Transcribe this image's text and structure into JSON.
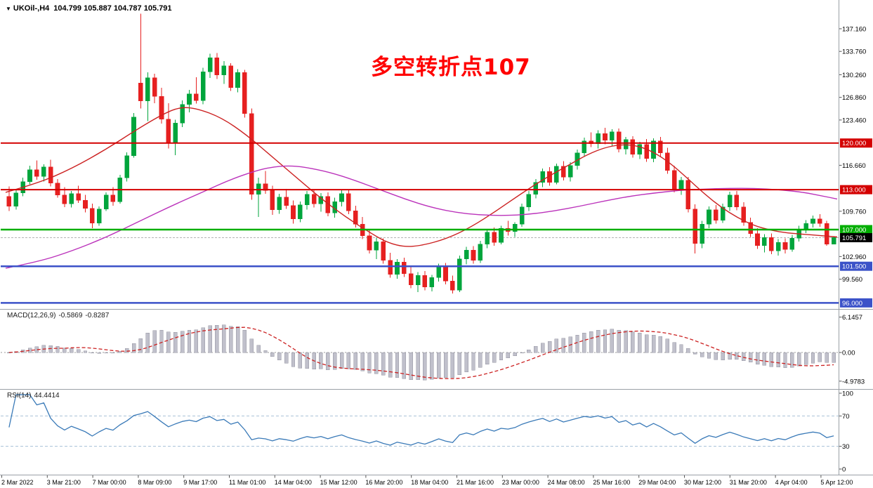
{
  "window": {
    "collapse_icon": "▼",
    "symbol": "UKOil-,H4",
    "ohlc_line": "104.799 105.887 104.787 105.791"
  },
  "annotation": {
    "text": "多空转折点107",
    "color": "#ff0000"
  },
  "indicators": {
    "macd": {
      "label": "MACD(12,26,9)",
      "main_value": "-0.5869",
      "signal_value": "-0.8287",
      "fast": 12,
      "slow": 26,
      "signal": 9,
      "histogram_color": "#c0c0cb",
      "histogram_stroke": "#9494a2",
      "signal_color": "#cc2222",
      "axis_labels": [
        {
          "label": "6.1457",
          "value": 6.1457
        },
        {
          "label": "0.00",
          "value": 0
        },
        {
          "label": "-4.9783",
          "value": -4.9783
        }
      ]
    },
    "rsi": {
      "label": "RSI(14)",
      "value": "44.4414",
      "period": 14,
      "line_color": "#3a7ab8",
      "level_color": "#a8c0d8",
      "levels": [
        70,
        30
      ],
      "axis_labels": [
        {
          "label": "100",
          "value": 100
        },
        {
          "label": "70",
          "value": 70
        },
        {
          "label": "30",
          "value": 30
        },
        {
          "label": "0",
          "value": 0
        }
      ]
    }
  },
  "chart_data": {
    "type": "candlestick",
    "symbol": "UKOil-",
    "timeframe": "H4",
    "ylim": [
      95.3,
      140.0
    ],
    "grid": false,
    "up_color": "#00a53c",
    "down_color": "#e62020",
    "current_price": {
      "label": "105.791",
      "value": 105.791,
      "box_color": "#000000"
    },
    "price_ticks": [
      {
        "label": "137.160",
        "value": 137.16
      },
      {
        "label": "133.760",
        "value": 133.76
      },
      {
        "label": "130.260",
        "value": 130.26
      },
      {
        "label": "126.860",
        "value": 126.86
      },
      {
        "label": "123.460",
        "value": 123.46
      },
      {
        "label": "116.660",
        "value": 116.66
      },
      {
        "label": "109.760",
        "value": 109.76
      },
      {
        "label": "102.960",
        "value": 102.96
      },
      {
        "label": "99.560",
        "value": 99.56
      }
    ],
    "line_levels": [
      {
        "label": "120.000",
        "value": 120.0,
        "color": "#d40000",
        "width": 2
      },
      {
        "label": "113.000",
        "value": 113.0,
        "color": "#d40000",
        "width": 2
      },
      {
        "label": "107.000",
        "value": 107.0,
        "color": "#00ae00",
        "width": 2.5
      },
      {
        "label": "101.500",
        "value": 101.5,
        "color": "#3b52c8",
        "width": 2.5
      },
      {
        "label": "96.000",
        "value": 96.0,
        "color": "#3b52c8",
        "width": 2.5
      }
    ],
    "ma_red": {
      "color": "#cc2222",
      "points": [
        [
          0,
          112.6
        ],
        [
          0.04,
          114.0
        ],
        [
          0.08,
          116.2
        ],
        [
          0.12,
          119.0
        ],
        [
          0.16,
          122.2
        ],
        [
          0.19,
          124.4
        ],
        [
          0.21,
          125.4
        ],
        [
          0.23,
          125.2
        ],
        [
          0.26,
          123.8
        ],
        [
          0.29,
          121.2
        ],
        [
          0.32,
          118.0
        ],
        [
          0.35,
          114.8
        ],
        [
          0.38,
          111.6
        ],
        [
          0.41,
          108.8
        ],
        [
          0.44,
          106.4
        ],
        [
          0.46,
          105.0
        ],
        [
          0.48,
          104.4
        ],
        [
          0.5,
          104.6
        ],
        [
          0.53,
          105.6
        ],
        [
          0.56,
          107.4
        ],
        [
          0.59,
          109.8
        ],
        [
          0.62,
          112.4
        ],
        [
          0.65,
          114.8
        ],
        [
          0.68,
          116.9
        ],
        [
          0.7,
          118.3
        ],
        [
          0.72,
          119.3
        ],
        [
          0.74,
          119.8
        ],
        [
          0.76,
          119.6
        ],
        [
          0.78,
          118.6
        ],
        [
          0.8,
          116.9
        ],
        [
          0.82,
          114.7
        ],
        [
          0.84,
          112.4
        ],
        [
          0.86,
          110.4
        ],
        [
          0.88,
          108.8
        ],
        [
          0.9,
          107.6
        ],
        [
          0.92,
          106.9
        ],
        [
          0.94,
          106.5
        ],
        [
          0.96,
          106.3
        ],
        [
          0.98,
          106.1
        ],
        [
          1.0,
          105.9
        ]
      ]
    },
    "ma_magenta": {
      "color": "#bb33bb",
      "points": [
        [
          0,
          101.2
        ],
        [
          0.04,
          102.2
        ],
        [
          0.08,
          103.8
        ],
        [
          0.12,
          105.8
        ],
        [
          0.16,
          108.2
        ],
        [
          0.2,
          110.6
        ],
        [
          0.24,
          112.8
        ],
        [
          0.27,
          114.5
        ],
        [
          0.3,
          115.8
        ],
        [
          0.32,
          116.4
        ],
        [
          0.34,
          116.6
        ],
        [
          0.36,
          116.4
        ],
        [
          0.39,
          115.6
        ],
        [
          0.42,
          114.4
        ],
        [
          0.45,
          113.0
        ],
        [
          0.48,
          111.6
        ],
        [
          0.51,
          110.4
        ],
        [
          0.54,
          109.6
        ],
        [
          0.57,
          109.2
        ],
        [
          0.6,
          109.1
        ],
        [
          0.63,
          109.3
        ],
        [
          0.66,
          109.8
        ],
        [
          0.69,
          110.5
        ],
        [
          0.72,
          111.3
        ],
        [
          0.75,
          112.0
        ],
        [
          0.78,
          112.5
        ],
        [
          0.81,
          112.9
        ],
        [
          0.84,
          113.1
        ],
        [
          0.87,
          113.2
        ],
        [
          0.9,
          113.2
        ],
        [
          0.93,
          113.0
        ],
        [
          0.96,
          112.6
        ],
        [
          0.98,
          112.1
        ],
        [
          1.0,
          111.6
        ]
      ]
    },
    "candles": [
      [
        112.0,
        113.5,
        109.8,
        110.5
      ],
      [
        110.5,
        113.0,
        110.0,
        112.5
      ],
      [
        112.5,
        114.8,
        112.0,
        114.2
      ],
      [
        114.2,
        116.6,
        113.8,
        116.0
      ],
      [
        116.0,
        117.4,
        114.5,
        115.0
      ],
      [
        115.0,
        116.8,
        114.2,
        116.4
      ],
      [
        116.4,
        117.5,
        113.5,
        114.0
      ],
      [
        114.0,
        114.6,
        111.8,
        112.2
      ],
      [
        112.2,
        113.4,
        110.4,
        110.9
      ],
      [
        110.9,
        112.8,
        110.3,
        112.4
      ],
      [
        112.4,
        113.6,
        111.0,
        111.4
      ],
      [
        111.4,
        112.2,
        109.6,
        110.2
      ],
      [
        110.2,
        110.9,
        107.2,
        108.0
      ],
      [
        108.0,
        110.5,
        107.6,
        110.1
      ],
      [
        110.1,
        112.6,
        109.8,
        112.2
      ],
      [
        112.2,
        113.4,
        110.6,
        111.2
      ],
      [
        111.2,
        115.2,
        110.9,
        114.8
      ],
      [
        114.8,
        118.6,
        114.2,
        118.1
      ],
      [
        118.1,
        124.5,
        117.8,
        123.9
      ],
      [
        129.0,
        139.4,
        125.2,
        126.3
      ],
      [
        126.3,
        130.6,
        123.3,
        129.8
      ],
      [
        129.8,
        130.4,
        126.0,
        127.0
      ],
      [
        127.0,
        128.3,
        122.9,
        123.6
      ],
      [
        123.6,
        126.0,
        119.2,
        120.0
      ],
      [
        120.0,
        123.5,
        118.2,
        123.0
      ],
      [
        123.0,
        126.4,
        122.4,
        125.8
      ],
      [
        125.8,
        128.0,
        124.6,
        127.4
      ],
      [
        127.4,
        129.9,
        125.9,
        126.4
      ],
      [
        126.4,
        131.3,
        125.8,
        130.7
      ],
      [
        130.7,
        133.4,
        129.8,
        132.8
      ],
      [
        132.8,
        133.5,
        129.6,
        130.2
      ],
      [
        130.2,
        132.3,
        128.9,
        131.6
      ],
      [
        131.6,
        132.0,
        127.8,
        128.3
      ],
      [
        128.3,
        131.1,
        127.6,
        130.6
      ],
      [
        130.6,
        131.0,
        123.8,
        124.4
      ],
      [
        124.4,
        125.2,
        111.5,
        112.3
      ],
      [
        112.3,
        114.8,
        108.9,
        113.9
      ],
      [
        113.9,
        115.8,
        112.4,
        112.9
      ],
      [
        112.9,
        113.6,
        109.2,
        110.0
      ],
      [
        110.0,
        112.4,
        109.4,
        111.9
      ],
      [
        111.9,
        113.1,
        110.1,
        110.6
      ],
      [
        110.6,
        111.4,
        107.9,
        108.6
      ],
      [
        108.6,
        111.2,
        108.1,
        110.7
      ],
      [
        110.7,
        112.8,
        110.0,
        112.3
      ],
      [
        112.3,
        113.0,
        110.3,
        110.9
      ],
      [
        110.9,
        112.5,
        109.7,
        112.0
      ],
      [
        112.0,
        112.6,
        109.0,
        109.5
      ],
      [
        109.5,
        111.8,
        108.8,
        111.2
      ],
      [
        111.2,
        112.9,
        110.5,
        112.4
      ],
      [
        112.4,
        112.9,
        109.3,
        109.8
      ],
      [
        109.8,
        110.6,
        107.3,
        107.8
      ],
      [
        107.8,
        108.9,
        105.6,
        106.1
      ],
      [
        106.1,
        107.0,
        103.4,
        103.9
      ],
      [
        103.9,
        105.8,
        102.6,
        105.2
      ],
      [
        105.2,
        105.7,
        101.9,
        102.4
      ],
      [
        102.4,
        103.5,
        99.8,
        100.3
      ],
      [
        100.3,
        102.6,
        99.6,
        102.1
      ],
      [
        102.1,
        102.8,
        99.9,
        100.4
      ],
      [
        100.4,
        101.5,
        98.2,
        98.7
      ],
      [
        98.7,
        100.6,
        97.6,
        100.1
      ],
      [
        100.1,
        100.8,
        97.9,
        98.4
      ],
      [
        98.4,
        100.2,
        97.7,
        99.8
      ],
      [
        99.8,
        101.9,
        99.2,
        101.4
      ],
      [
        101.4,
        102.0,
        98.8,
        99.3
      ],
      [
        99.3,
        100.1,
        97.4,
        97.9
      ],
      [
        97.9,
        103.1,
        97.6,
        102.6
      ],
      [
        102.6,
        104.4,
        101.8,
        103.9
      ],
      [
        103.9,
        104.5,
        101.9,
        102.4
      ],
      [
        102.4,
        105.3,
        102.0,
        104.8
      ],
      [
        104.8,
        107.1,
        104.2,
        106.6
      ],
      [
        106.6,
        107.3,
        104.6,
        105.1
      ],
      [
        105.1,
        107.6,
        104.8,
        107.2
      ],
      [
        107.2,
        108.3,
        106.1,
        106.7
      ],
      [
        106.7,
        108.1,
        105.9,
        107.8
      ],
      [
        107.8,
        110.9,
        107.4,
        110.4
      ],
      [
        110.4,
        112.8,
        109.8,
        112.3
      ],
      [
        112.3,
        114.6,
        111.7,
        114.1
      ],
      [
        114.1,
        116.2,
        113.4,
        115.7
      ],
      [
        115.7,
        116.4,
        113.6,
        114.1
      ],
      [
        114.1,
        116.9,
        113.8,
        116.5
      ],
      [
        116.5,
        117.3,
        114.4,
        114.9
      ],
      [
        114.9,
        117.1,
        114.2,
        116.6
      ],
      [
        116.6,
        119.0,
        116.0,
        118.5
      ],
      [
        118.5,
        120.8,
        117.9,
        120.3
      ],
      [
        120.3,
        121.6,
        119.4,
        119.9
      ],
      [
        119.9,
        121.9,
        119.2,
        121.4
      ],
      [
        121.4,
        122.3,
        119.8,
        120.4
      ],
      [
        120.4,
        122.1,
        119.5,
        121.7
      ],
      [
        121.7,
        122.2,
        118.6,
        119.1
      ],
      [
        119.1,
        120.9,
        118.3,
        120.5
      ],
      [
        120.5,
        121.0,
        117.8,
        118.3
      ],
      [
        118.3,
        120.2,
        117.6,
        119.8
      ],
      [
        119.8,
        120.6,
        117.2,
        117.7
      ],
      [
        117.7,
        120.7,
        117.1,
        120.3
      ],
      [
        120.3,
        120.9,
        118.0,
        118.5
      ],
      [
        118.5,
        119.3,
        115.4,
        115.9
      ],
      [
        115.9,
        116.6,
        112.6,
        113.1
      ],
      [
        113.1,
        114.9,
        112.2,
        114.4
      ],
      [
        114.4,
        114.9,
        109.6,
        110.1
      ],
      [
        110.1,
        110.8,
        103.4,
        104.9
      ],
      [
        104.9,
        108.3,
        104.2,
        107.8
      ],
      [
        107.8,
        110.5,
        107.2,
        110.0
      ],
      [
        110.0,
        110.7,
        107.9,
        108.4
      ],
      [
        108.4,
        110.9,
        108.0,
        110.4
      ],
      [
        110.4,
        112.7,
        109.8,
        112.2
      ],
      [
        112.2,
        112.8,
        109.9,
        110.4
      ],
      [
        110.4,
        111.1,
        107.6,
        108.1
      ],
      [
        108.1,
        108.8,
        105.9,
        106.4
      ],
      [
        106.4,
        107.2,
        104.1,
        104.6
      ],
      [
        104.6,
        106.3,
        103.6,
        105.8
      ],
      [
        105.8,
        106.4,
        103.3,
        103.8
      ],
      [
        103.8,
        105.6,
        103.1,
        105.1
      ],
      [
        105.1,
        105.7,
        103.4,
        104.0
      ],
      [
        104.0,
        106.2,
        103.7,
        105.7
      ],
      [
        105.7,
        107.6,
        105.2,
        107.1
      ],
      [
        107.1,
        108.4,
        106.5,
        107.9
      ],
      [
        107.9,
        109.1,
        107.3,
        108.6
      ],
      [
        108.6,
        109.3,
        107.4,
        107.9
      ],
      [
        107.9,
        108.3,
        104.6,
        104.8
      ],
      [
        104.799,
        105.887,
        104.787,
        105.791
      ]
    ],
    "x_labels": [
      "2 Mar 2022",
      "3 Mar 21:00",
      "7 Mar 00:00",
      "8 Mar 09:00",
      "9 Mar 17:00",
      "11 Mar 01:00",
      "14 Mar 04:00",
      "15 Mar 12:00",
      "16 Mar 20:00",
      "18 Mar 04:00",
      "21 Mar 16:00",
      "23 Mar 00:00",
      "24 Mar 08:00",
      "25 Mar 16:00",
      "29 Mar 04:00",
      "30 Mar 12:00",
      "31 Mar 20:00",
      "4 Apr 04:00",
      "5 Apr 12:00"
    ]
  }
}
